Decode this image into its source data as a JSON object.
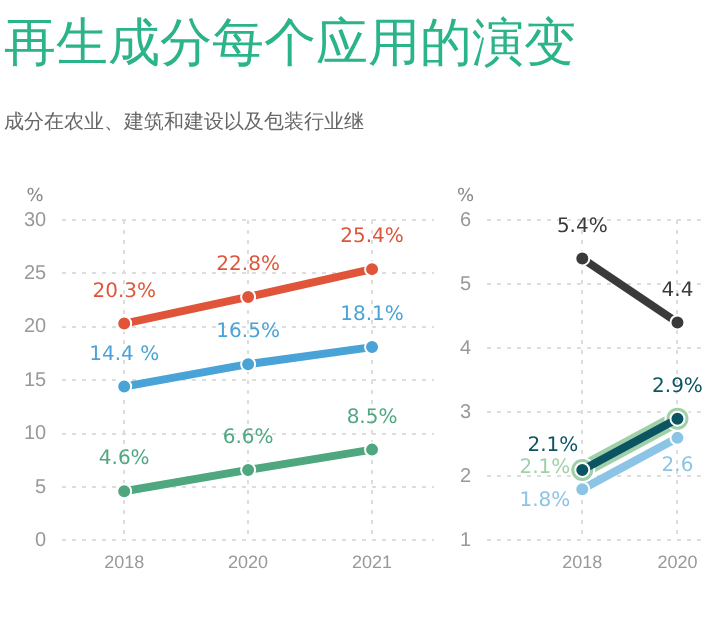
{
  "chart_data": [
    {
      "type": "line",
      "title": "再生成分每个应用的演变",
      "subtitle": "成分在农业、建筑和建设以及包装行业继",
      "ylabel": "%",
      "categories": [
        "2018",
        "2020",
        "2021"
      ],
      "ylim": [
        0,
        30
      ],
      "yticks": [
        0,
        5,
        10,
        15,
        20,
        25,
        30
      ],
      "grid": true,
      "legend": false,
      "marker": "circle",
      "series": [
        {
          "color": "#e0553a",
          "values": [
            20.3,
            22.8,
            25.4
          ],
          "value_labels": [
            "20.3%",
            "22.8%",
            "25.4%"
          ]
        },
        {
          "color": "#4aa3d6",
          "values": [
            14.4,
            16.5,
            18.1
          ],
          "value_labels": [
            "14.4 %",
            "16.5%",
            "18.1%"
          ]
        },
        {
          "color": "#4fa77f",
          "values": [
            4.6,
            6.6,
            8.5
          ],
          "value_labels": [
            "4.6%",
            "6.6%",
            "8.5%"
          ]
        }
      ]
    },
    {
      "type": "line",
      "ylabel": "%",
      "categories": [
        "2018",
        "2020"
      ],
      "ylim": [
        1,
        6
      ],
      "yticks": [
        1,
        2,
        3,
        4,
        5,
        6
      ],
      "grid": true,
      "legend": false,
      "marker": "circle",
      "series": [
        {
          "color": "#3a3a3a",
          "values": [
            5.4,
            4.4
          ],
          "value_labels": [
            "5.4%",
            "4.4"
          ]
        },
        {
          "color": "#0b5563",
          "values": [
            2.1,
            2.9
          ],
          "value_labels": [
            "2.1%",
            "2.9%"
          ]
        },
        {
          "color": "#9fd0a8",
          "values": [
            2.1,
            2.9
          ],
          "value_labels": [
            "2.1%",
            null
          ]
        },
        {
          "color": "#8cc4e6",
          "values": [
            1.8,
            2.6
          ],
          "value_labels": [
            "1.8%",
            "2.6"
          ]
        }
      ]
    }
  ]
}
